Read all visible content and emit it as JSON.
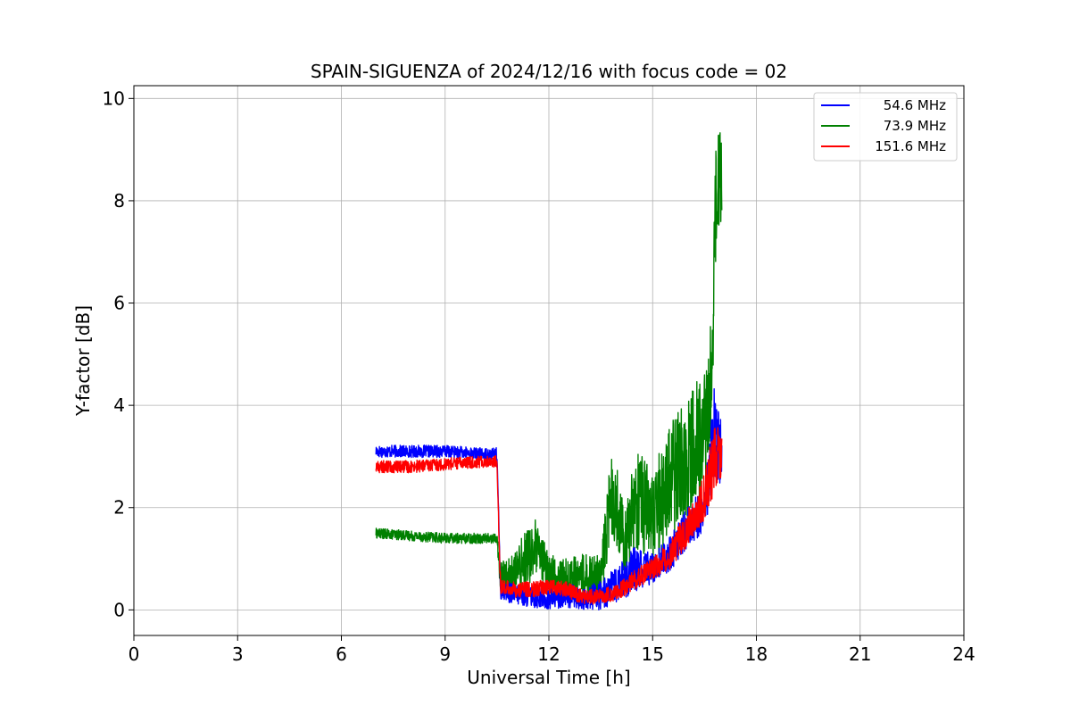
{
  "chart_data": {
    "type": "line",
    "title": "SPAIN-SIGUENZA of 2024/12/16 with focus code = 02",
    "xlabel": "Universal Time [h]",
    "ylabel": "Y-factor [dB]",
    "xlim": [
      0,
      24
    ],
    "ylim": [
      -0.5,
      10.25
    ],
    "xticks": [
      0,
      3,
      6,
      9,
      12,
      15,
      18,
      21,
      24
    ],
    "yticks": [
      0,
      2,
      4,
      6,
      8,
      10
    ],
    "xtick_labels": [
      "0",
      "3",
      "6",
      "9",
      "12",
      "15",
      "18",
      "21",
      "24"
    ],
    "ytick_labels": [
      "0",
      "2",
      "4",
      "6",
      "8",
      "10"
    ],
    "grid": true,
    "legend_position": "top-right",
    "series": [
      {
        "name": "54.6 MHz",
        "color": "#0000ff",
        "x": [
          7.0,
          8.0,
          9.0,
          10.0,
          10.5,
          10.6,
          11.0,
          11.5,
          12.0,
          12.5,
          13.0,
          13.5,
          14.0,
          14.5,
          15.0,
          15.5,
          16.0,
          16.5,
          16.8,
          17.0
        ],
        "y": [
          3.1,
          3.1,
          3.1,
          3.05,
          3.05,
          0.4,
          0.3,
          0.25,
          0.2,
          0.3,
          0.2,
          0.3,
          0.5,
          0.8,
          0.8,
          1.1,
          1.6,
          2.0,
          3.5,
          3.0
        ],
        "noise": [
          0.12,
          0.12,
          0.12,
          0.12,
          0.12,
          0.2,
          0.2,
          0.2,
          0.2,
          0.25,
          0.2,
          0.3,
          0.35,
          0.45,
          0.3,
          0.35,
          0.4,
          0.45,
          1.0,
          0.6
        ]
      },
      {
        "name": "73.9 MHz",
        "color": "#008000",
        "x": [
          7.0,
          8.0,
          9.0,
          10.0,
          10.5,
          10.6,
          11.0,
          11.3,
          11.6,
          12.0,
          12.5,
          13.0,
          13.5,
          13.8,
          14.2,
          14.6,
          15.0,
          15.5,
          16.0,
          16.5,
          16.7,
          16.85,
          17.0
        ],
        "y": [
          1.5,
          1.45,
          1.4,
          1.4,
          1.4,
          0.6,
          0.7,
          1.0,
          1.2,
          0.7,
          0.6,
          0.7,
          0.6,
          2.3,
          1.5,
          2.2,
          1.8,
          2.5,
          3.0,
          3.5,
          4.5,
          8.5,
          8.2
        ],
        "noise": [
          0.1,
          0.1,
          0.1,
          0.1,
          0.1,
          0.35,
          0.4,
          0.6,
          0.6,
          0.4,
          0.4,
          0.4,
          0.5,
          0.8,
          0.8,
          1.0,
          1.0,
          1.1,
          1.2,
          1.2,
          1.3,
          1.2,
          1.0
        ]
      },
      {
        "name": "151.6 MHz",
        "color": "#ff0000",
        "x": [
          7.0,
          8.0,
          9.0,
          10.0,
          10.5,
          10.6,
          11.0,
          11.5,
          12.0,
          12.5,
          13.0,
          13.5,
          14.0,
          14.5,
          15.0,
          15.5,
          16.0,
          16.5,
          16.8,
          17.0
        ],
        "y": [
          2.8,
          2.8,
          2.85,
          2.9,
          2.9,
          0.45,
          0.4,
          0.4,
          0.45,
          0.4,
          0.25,
          0.25,
          0.35,
          0.6,
          0.8,
          1.1,
          1.6,
          2.2,
          3.0,
          3.0
        ],
        "noise": [
          0.12,
          0.12,
          0.12,
          0.12,
          0.12,
          0.15,
          0.15,
          0.15,
          0.15,
          0.15,
          0.15,
          0.15,
          0.15,
          0.2,
          0.2,
          0.3,
          0.35,
          0.45,
          0.7,
          0.4
        ]
      }
    ]
  }
}
